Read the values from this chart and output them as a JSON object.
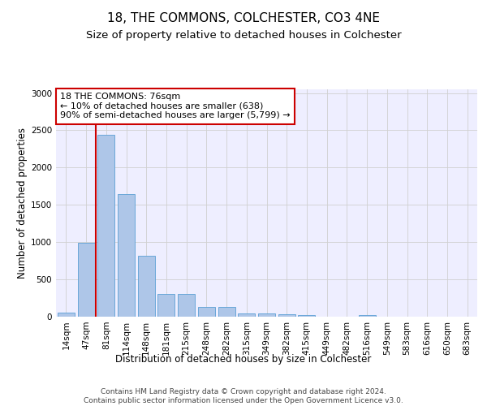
{
  "title": "18, THE COMMONS, COLCHESTER, CO3 4NE",
  "subtitle": "Size of property relative to detached houses in Colchester",
  "xlabel": "Distribution of detached houses by size in Colchester",
  "ylabel": "Number of detached properties",
  "categories": [
    "14sqm",
    "47sqm",
    "81sqm",
    "114sqm",
    "148sqm",
    "181sqm",
    "215sqm",
    "248sqm",
    "282sqm",
    "315sqm",
    "349sqm",
    "382sqm",
    "415sqm",
    "449sqm",
    "482sqm",
    "516sqm",
    "549sqm",
    "583sqm",
    "616sqm",
    "650sqm",
    "683sqm"
  ],
  "values": [
    50,
    990,
    2440,
    1650,
    820,
    300,
    300,
    130,
    130,
    45,
    45,
    30,
    20,
    0,
    0,
    20,
    0,
    0,
    0,
    0,
    0
  ],
  "bar_color": "#aec6e8",
  "bar_edge_color": "#5a9fd4",
  "annotation_text": "18 THE COMMONS: 76sqm\n← 10% of detached houses are smaller (638)\n90% of semi-detached houses are larger (5,799) →",
  "annotation_box_color": "#ffffff",
  "annotation_box_edge_color": "#cc0000",
  "red_line_color": "#cc0000",
  "ylim": [
    0,
    3050
  ],
  "yticks": [
    0,
    500,
    1000,
    1500,
    2000,
    2500,
    3000
  ],
  "grid_color": "#d0d0d0",
  "background_color": "#eeeeff",
  "footer_text": "Contains HM Land Registry data © Crown copyright and database right 2024.\nContains public sector information licensed under the Open Government Licence v3.0.",
  "title_fontsize": 11,
  "subtitle_fontsize": 9.5,
  "xlabel_fontsize": 8.5,
  "ylabel_fontsize": 8.5,
  "tick_fontsize": 7.5,
  "annotation_fontsize": 8,
  "footer_fontsize": 6.5
}
